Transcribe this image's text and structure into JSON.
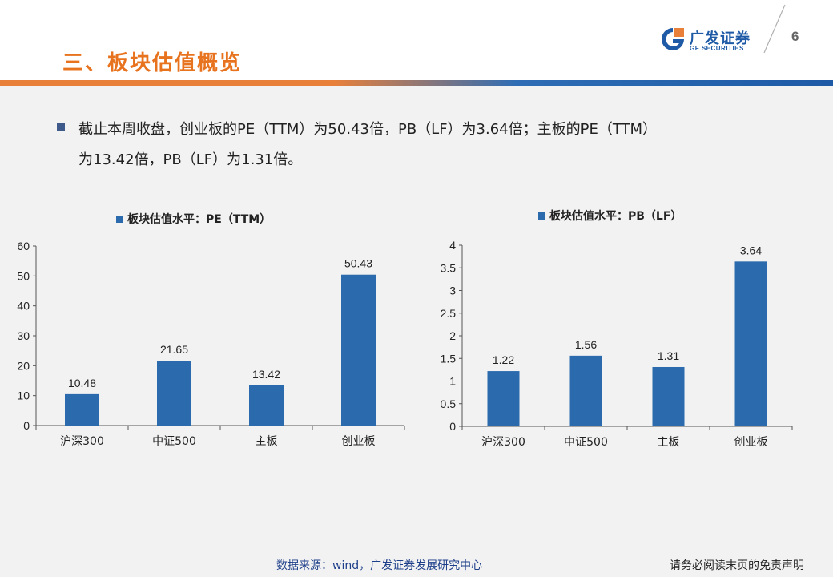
{
  "header": {
    "section_title": "三、板块估值概览",
    "logo_cn": "广发证券",
    "logo_en": "GF SECURITIES",
    "page_number": "6"
  },
  "summary": {
    "line1": "截止本周收盘，创业板的PE（TTM）为50.43倍，PB（LF）为3.64倍；主板的PE（TTM）",
    "line2": "为13.42倍，PB（LF）为1.31倍。"
  },
  "chart_data": [
    {
      "type": "bar",
      "legend": "板块估值水平：PE（TTM）",
      "categories": [
        "沪深300",
        "中证500",
        "主板",
        "创业板"
      ],
      "values": [
        10.48,
        21.65,
        13.42,
        50.43
      ],
      "value_labels": [
        "10.48",
        "21.65",
        "13.42",
        "50.43"
      ],
      "yticks": [
        "0",
        "10",
        "20",
        "30",
        "40",
        "50",
        "60"
      ],
      "ylim": [
        0,
        60
      ],
      "color": "#2a6aad"
    },
    {
      "type": "bar",
      "legend": "板块估值水平：PB（LF）",
      "categories": [
        "沪深300",
        "中证500",
        "主板",
        "创业板"
      ],
      "values": [
        1.22,
        1.56,
        1.31,
        3.64
      ],
      "value_labels": [
        "1.22",
        "1.56",
        "1.31",
        "3.64"
      ],
      "yticks": [
        "0",
        "0.5",
        "1",
        "1.5",
        "2",
        "2.5",
        "3",
        "3.5",
        "4"
      ],
      "ylim": [
        0,
        4
      ],
      "color": "#2a6aad"
    }
  ],
  "footer": {
    "source": "数据来源：wind，广发证券发展研究中心",
    "disclaimer": "请务必阅读末页的免责声明"
  }
}
